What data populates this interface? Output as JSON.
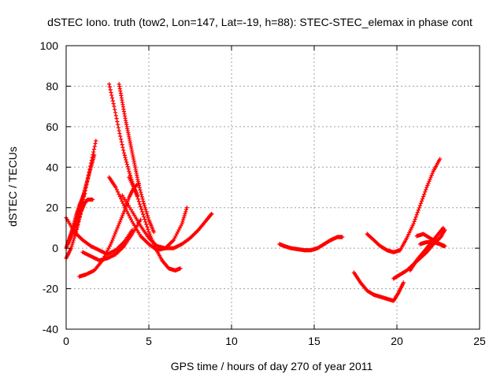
{
  "chart_data": {
    "type": "scatter",
    "title": "dSTEC Iono. truth (tow2, Lon=147, Lat=-19, h=88): STEC-STEC_elemax in phase cont",
    "xlabel": "GPS time / hours of day 270 of year 2011",
    "ylabel": "dSTEC  / TECUs",
    "xlim": [
      0,
      25
    ],
    "ylim": [
      -40,
      100
    ],
    "xticks": [
      0,
      5,
      10,
      15,
      20,
      25
    ],
    "yticks": [
      -40,
      -20,
      0,
      20,
      40,
      60,
      80,
      100
    ],
    "grid": true,
    "grid_style": "dotted",
    "legend": "none",
    "marker": "plus",
    "color": "#ff0000",
    "series": [
      {
        "x": [
          0.0,
          0.3,
          0.6,
          0.9,
          1.2,
          1.5,
          1.8
        ],
        "y": [
          -5,
          0,
          8,
          18,
          30,
          42,
          53
        ]
      },
      {
        "x": [
          0.0,
          0.2,
          0.4,
          0.6,
          0.8,
          1.0,
          1.1
        ],
        "y": [
          0,
          5,
          10,
          16,
          21,
          25,
          27
        ]
      },
      {
        "x": [
          0.1,
          0.3,
          0.5,
          0.7,
          0.9,
          1.1,
          1.3,
          1.5,
          1.7
        ],
        "y": [
          2,
          6,
          11,
          16,
          22,
          28,
          34,
          40,
          46
        ]
      },
      {
        "x": [
          0.5,
          0.7,
          0.9,
          1.1,
          1.3,
          1.6
        ],
        "y": [
          6,
          12,
          18,
          22,
          24,
          24
        ]
      },
      {
        "x": [
          0.0,
          0.5,
          1.0,
          1.5,
          2.0,
          2.5,
          3.0,
          3.5,
          4.0
        ],
        "y": [
          15,
          8,
          4,
          1,
          -1,
          -3,
          -1,
          3,
          9
        ]
      },
      {
        "x": [
          0.8,
          1.2,
          1.7,
          2.2,
          2.7,
          3.1,
          3.5,
          3.8,
          4.1,
          4.4
        ],
        "y": [
          -14,
          -13,
          -11,
          -6,
          2,
          10,
          18,
          25,
          30,
          32
        ]
      },
      {
        "x": [
          1.0,
          1.5,
          2.0,
          2.5,
          3.0,
          3.5,
          4.0,
          4.5
        ],
        "y": [
          -2,
          -4,
          -6,
          -5,
          -3,
          1,
          7,
          14
        ]
      },
      {
        "x": [
          2.6,
          2.9,
          3.2,
          3.5,
          3.8,
          4.1,
          4.3
        ],
        "y": [
          81,
          70,
          58,
          47,
          38,
          30,
          26
        ]
      },
      {
        "x": [
          3.2,
          3.4,
          3.6,
          3.8,
          4.0,
          4.2,
          4.4,
          4.7,
          5.0,
          5.3
        ],
        "y": [
          81,
          72,
          63,
          55,
          47,
          39,
          31,
          22,
          14,
          8
        ]
      },
      {
        "x": [
          2.6,
          3.0,
          3.5,
          4.0,
          4.5,
          5.0,
          5.5,
          6.0,
          6.5,
          7.0,
          7.3
        ],
        "y": [
          35,
          30,
          21,
          13,
          6,
          2,
          -1,
          0,
          4,
          12,
          20
        ]
      },
      {
        "x": [
          3.8,
          4.2,
          4.6,
          5.0,
          5.4,
          5.8,
          6.2,
          6.6,
          6.9
        ],
        "y": [
          35,
          28,
          18,
          8,
          0,
          -6,
          -10,
          -11,
          -10
        ]
      },
      {
        "x": [
          3.4,
          4.0,
          4.5,
          5.0,
          5.5,
          6.0,
          6.5,
          7.0,
          7.5,
          8.0,
          8.5,
          8.8
        ],
        "y": [
          26,
          18,
          11,
          5,
          1,
          0,
          0,
          2,
          5,
          9,
          14,
          17
        ]
      },
      {
        "x": [
          12.9,
          13.2,
          13.6,
          14.0,
          14.4,
          14.8,
          15.2,
          15.6,
          16.0,
          16.4,
          16.7
        ],
        "y": [
          2,
          1,
          0,
          -0.5,
          -1,
          -1,
          0,
          2,
          4,
          5.5,
          5.5
        ]
      },
      {
        "x": [
          17.4,
          17.8,
          18.2,
          18.6,
          19.0,
          19.4,
          19.8,
          20.1,
          20.4
        ],
        "y": [
          -12,
          -17,
          -21,
          -23,
          -24,
          -25,
          -26,
          -22,
          -17
        ]
      },
      {
        "x": [
          18.2,
          18.6,
          19.0,
          19.4,
          19.8,
          20.2,
          20.6,
          21.0,
          21.4,
          21.8,
          22.2,
          22.6
        ],
        "y": [
          7,
          4,
          1,
          -1,
          -2,
          -1,
          5,
          12,
          21,
          30,
          38,
          44
        ]
      },
      {
        "x": [
          19.8,
          20.2,
          20.6,
          21.0,
          21.4,
          21.8,
          22.2,
          22.7
        ],
        "y": [
          -15,
          -13,
          -11,
          -8,
          -5,
          -2,
          2,
          6
        ]
      },
      {
        "x": [
          20.8,
          21.2,
          21.6,
          22.0,
          22.4,
          22.8
        ],
        "y": [
          -11,
          -6,
          -2,
          2,
          6,
          10
        ]
      },
      {
        "x": [
          21.0,
          21.4,
          21.8,
          22.2,
          22.6,
          22.9
        ],
        "y": [
          -8,
          -4,
          -1,
          2,
          5,
          9
        ]
      },
      {
        "x": [
          21.2,
          21.6,
          22.0,
          22.4,
          22.8
        ],
        "y": [
          6,
          7,
          5,
          3,
          1
        ]
      },
      {
        "x": [
          21.4,
          21.8,
          22.2,
          22.6,
          22.9
        ],
        "y": [
          2,
          3,
          3,
          2,
          1
        ]
      }
    ]
  }
}
